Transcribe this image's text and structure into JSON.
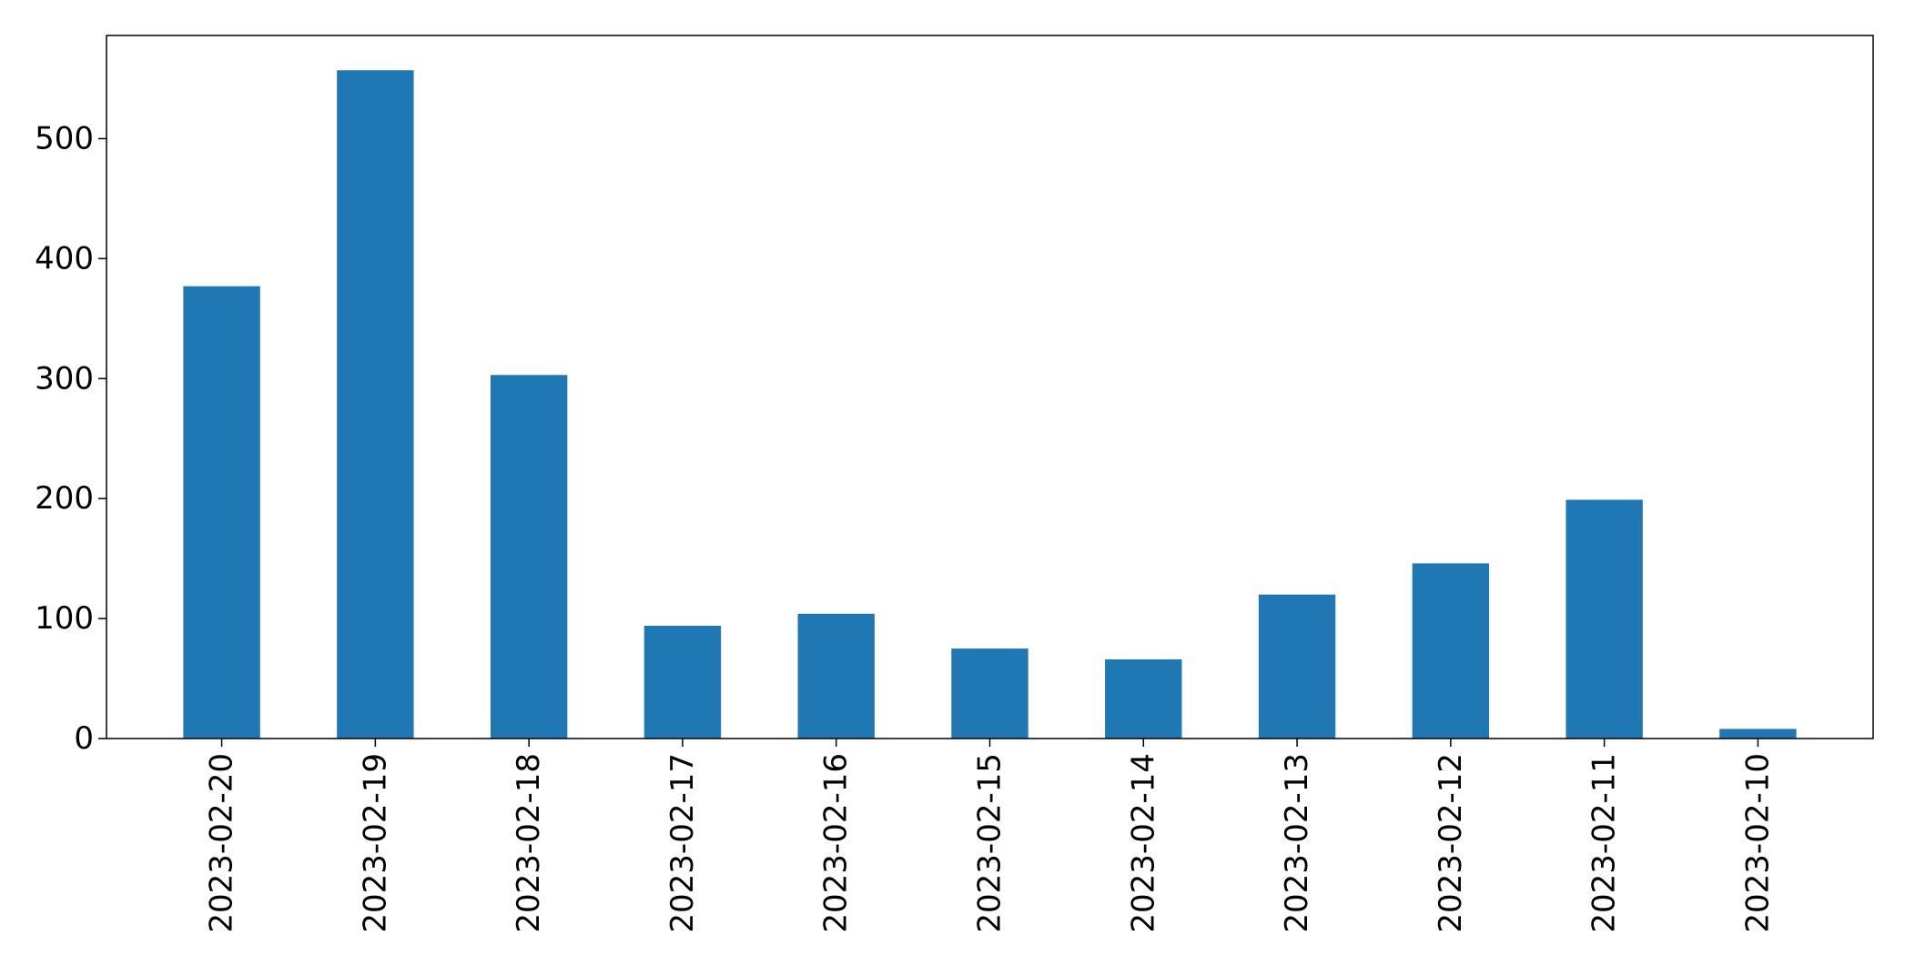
{
  "chart_data": {
    "type": "bar",
    "title": "",
    "xlabel": "",
    "ylabel": "",
    "categories": [
      "2023-02-20",
      "2023-02-19",
      "2023-02-18",
      "2023-02-17",
      "2023-02-16",
      "2023-02-15",
      "2023-02-14",
      "2023-02-13",
      "2023-02-12",
      "2023-02-11",
      "2023-02-10"
    ],
    "values": [
      377,
      557,
      303,
      94,
      104,
      75,
      66,
      120,
      146,
      199,
      8
    ],
    "ylim": [
      0,
      586
    ],
    "yticks": [
      0,
      100,
      200,
      300,
      400,
      500
    ],
    "bar_color": "#1f77b4",
    "grid": false,
    "legend": "none"
  }
}
